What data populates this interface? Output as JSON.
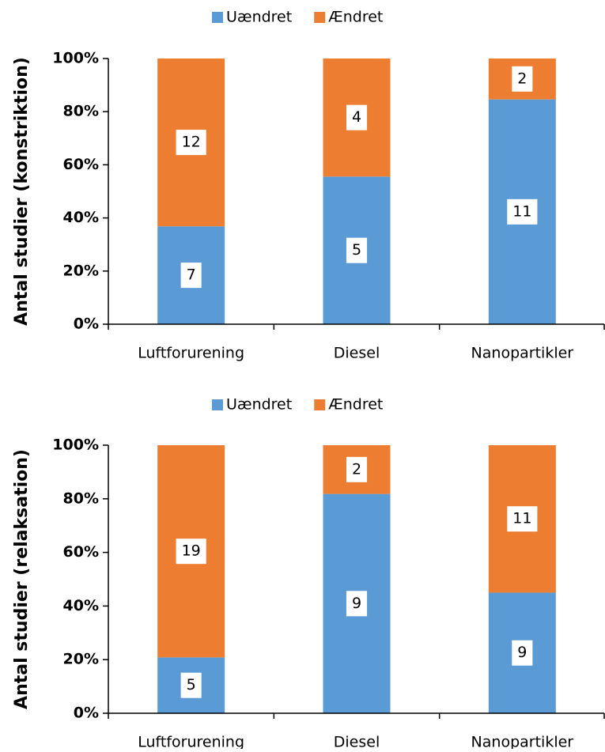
{
  "chart_data": [
    {
      "type": "bar",
      "stacking": "percent",
      "y_label": "Antal studier (konstriktion)",
      "categories": [
        "Luftforurening",
        "Diesel",
        "Nanopartikler"
      ],
      "series": [
        {
          "name": "Uændret",
          "color": "#5b9bd5",
          "values": [
            7,
            5,
            11
          ]
        },
        {
          "name": "Ændret",
          "color": "#ed7d31",
          "values": [
            12,
            4,
            2
          ]
        }
      ],
      "ylim": [
        0,
        100
      ],
      "yticks": [
        {
          "value": 0,
          "label": "0%"
        },
        {
          "value": 20,
          "label": "20%"
        },
        {
          "value": 40,
          "label": "40%"
        },
        {
          "value": 60,
          "label": "60%"
        },
        {
          "value": 80,
          "label": "80%"
        },
        {
          "value": 100,
          "label": "100%"
        }
      ],
      "legend": "top"
    },
    {
      "type": "bar",
      "stacking": "percent",
      "y_label": "Antal studier (relaksation)",
      "categories": [
        "Luftforurening",
        "Diesel",
        "Nanopartikler"
      ],
      "series": [
        {
          "name": "Uændret",
          "color": "#5b9bd5",
          "values": [
            5,
            9,
            9
          ]
        },
        {
          "name": "Ændret",
          "color": "#ed7d31",
          "values": [
            19,
            2,
            11
          ]
        }
      ],
      "ylim": [
        0,
        100
      ],
      "yticks": [
        {
          "value": 0,
          "label": "0%"
        },
        {
          "value": 20,
          "label": "20%"
        },
        {
          "value": 40,
          "label": "40%"
        },
        {
          "value": 60,
          "label": "60%"
        },
        {
          "value": 80,
          "label": "80%"
        },
        {
          "value": 100,
          "label": "100%"
        }
      ],
      "legend": "top"
    }
  ]
}
